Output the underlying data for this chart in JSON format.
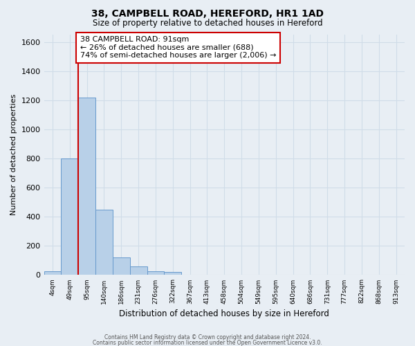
{
  "title": "38, CAMPBELL ROAD, HEREFORD, HR1 1AD",
  "subtitle": "Size of property relative to detached houses in Hereford",
  "xlabel": "Distribution of detached houses by size in Hereford",
  "ylabel": "Number of detached properties",
  "footer_line1": "Contains HM Land Registry data © Crown copyright and database right 2024.",
  "footer_line2": "Contains public sector information licensed under the Open Government Licence v3.0.",
  "bin_labels": [
    "4sqm",
    "49sqm",
    "95sqm",
    "140sqm",
    "186sqm",
    "231sqm",
    "276sqm",
    "322sqm",
    "367sqm",
    "413sqm",
    "458sqm",
    "504sqm",
    "549sqm",
    "595sqm",
    "640sqm",
    "686sqm",
    "731sqm",
    "777sqm",
    "822sqm",
    "868sqm",
    "913sqm"
  ],
  "bar_heights": [
    25,
    800,
    1220,
    450,
    120,
    60,
    25,
    20,
    0,
    0,
    0,
    0,
    0,
    0,
    0,
    0,
    0,
    0,
    0,
    0,
    0
  ],
  "bar_color": "#b8d0e8",
  "bar_edge_color": "#6699cc",
  "vline_color": "#cc0000",
  "vline_x_index": 2,
  "ylim": [
    0,
    1650
  ],
  "annotation_line1": "38 CAMPBELL ROAD: 91sqm",
  "annotation_line2": "← 26% of detached houses are smaller (688)",
  "annotation_line3": "74% of semi-detached houses are larger (2,006) →",
  "annotation_box_color": "white",
  "annotation_box_edgecolor": "#cc0000",
  "background_color": "#e8eef4"
}
